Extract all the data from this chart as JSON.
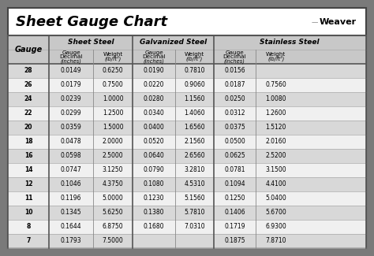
{
  "title": "Sheet Gauge Chart",
  "bg_outer": "#7a7a7a",
  "bg_white": "#ffffff",
  "header_bg": "#c8c8c8",
  "row_even": "#d8d8d8",
  "row_odd": "#f0f0f0",
  "gauges": [
    28,
    26,
    24,
    22,
    20,
    18,
    16,
    14,
    12,
    11,
    10,
    8,
    7
  ],
  "sheet_steel": [
    [
      "0.0149",
      "0.6250"
    ],
    [
      "0.0179",
      "0.7500"
    ],
    [
      "0.0239",
      "1.0000"
    ],
    [
      "0.0299",
      "1.2500"
    ],
    [
      "0.0359",
      "1.5000"
    ],
    [
      "0.0478",
      "2.0000"
    ],
    [
      "0.0598",
      "2.5000"
    ],
    [
      "0.0747",
      "3.1250"
    ],
    [
      "0.1046",
      "4.3750"
    ],
    [
      "0.1196",
      "5.0000"
    ],
    [
      "0.1345",
      "5.6250"
    ],
    [
      "0.1644",
      "6.8750"
    ],
    [
      "0.1793",
      "7.5000"
    ]
  ],
  "galvanized_steel": [
    [
      "0.0190",
      "0.7810"
    ],
    [
      "0.0220",
      "0.9060"
    ],
    [
      "0.0280",
      "1.1560"
    ],
    [
      "0.0340",
      "1.4060"
    ],
    [
      "0.0400",
      "1.6560"
    ],
    [
      "0.0520",
      "2.1560"
    ],
    [
      "0.0640",
      "2.6560"
    ],
    [
      "0.0790",
      "3.2810"
    ],
    [
      "0.1080",
      "4.5310"
    ],
    [
      "0.1230",
      "5.1560"
    ],
    [
      "0.1380",
      "5.7810"
    ],
    [
      "0.1680",
      "7.0310"
    ],
    [
      "",
      ""
    ]
  ],
  "stainless_steel": [
    [
      "0.0156",
      ""
    ],
    [
      "0.0187",
      "0.7560"
    ],
    [
      "0.0250",
      "1.0080"
    ],
    [
      "0.0312",
      "1.2600"
    ],
    [
      "0.0375",
      "1.5120"
    ],
    [
      "0.0500",
      "2.0160"
    ],
    [
      "0.0625",
      "2.5200"
    ],
    [
      "0.0781",
      "3.1500"
    ],
    [
      "0.1094",
      "4.4100"
    ],
    [
      "0.1250",
      "5.0400"
    ],
    [
      "0.1406",
      "5.6700"
    ],
    [
      "0.1719",
      "6.9300"
    ],
    [
      "0.1875",
      "7.8710"
    ]
  ]
}
